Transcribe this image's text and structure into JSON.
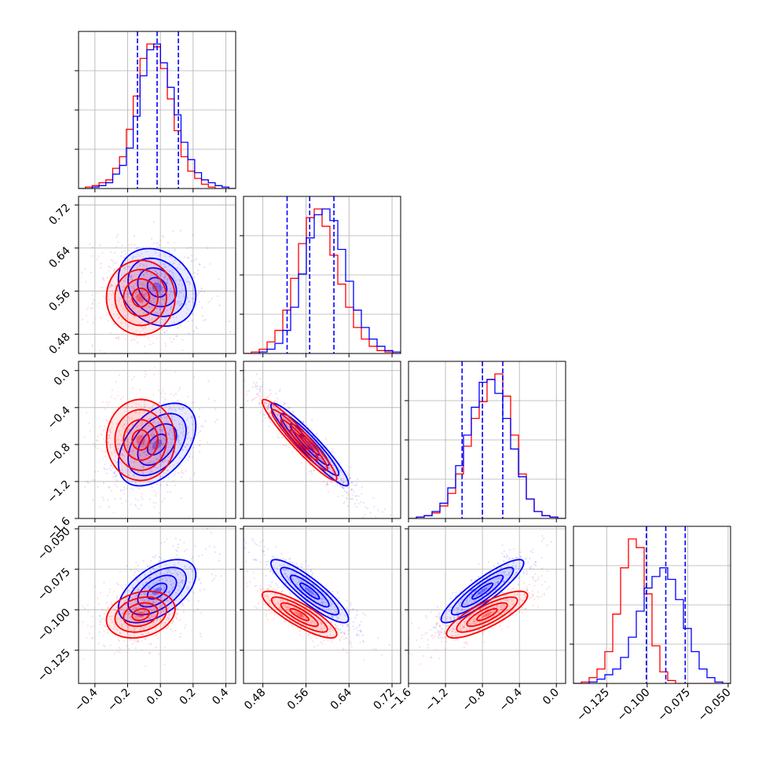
{
  "chart_data": {
    "type": "corner",
    "colors": {
      "red": "#ff0000",
      "blue": "#0000ff"
    },
    "params": [
      {
        "lim": [
          -0.5,
          0.46
        ],
        "ticks": [
          "−0.4",
          "−0.2",
          "0.0",
          "0.2",
          "0.4"
        ],
        "tickvals": [
          -0.4,
          -0.2,
          0.0,
          0.2,
          0.4
        ]
      },
      {
        "lim": [
          0.444,
          0.736
        ],
        "ticks": [
          "0.48",
          "0.56",
          "0.64",
          "0.72"
        ],
        "tickvals": [
          0.48,
          0.56,
          0.64,
          0.72
        ]
      },
      {
        "lim": [
          -1.6,
          0.1
        ],
        "ticks": [
          "−1.6",
          "−1.2",
          "−0.8",
          "−0.4",
          "0.0"
        ],
        "tickvals": [
          -1.6,
          -1.2,
          -0.8,
          -0.4,
          0.0
        ]
      },
      {
        "lim": [
          -0.1455,
          -0.0485
        ],
        "ticks": [
          "−0.125",
          "−0.100",
          "−0.075",
          "−0.050"
        ],
        "tickvals": [
          -0.125,
          -0.1,
          -0.075,
          -0.05
        ]
      }
    ],
    "y_ticks": [
      null,
      {
        "ticks": [
          "0.48",
          "0.56",
          "0.64",
          "0.72"
        ],
        "tickvals": [
          0.48,
          0.56,
          0.64,
          0.72
        ]
      },
      {
        "ticks": [
          "−1.6",
          "−1.2",
          "−0.8",
          "−0.4",
          "0.0"
        ],
        "tickvals": [
          -1.6,
          -1.2,
          -0.8,
          -0.4,
          0.0
        ]
      },
      {
        "ticks": [
          "−0.125",
          "−0.100",
          "−0.075",
          "−0.050"
        ],
        "tickvals": [
          -0.125,
          -0.1,
          -0.075,
          -0.05
        ]
      }
    ],
    "quantiles_blue": [
      [
        -0.14,
        -0.02,
        0.11
      ],
      [
        0.525,
        0.567,
        0.612
      ],
      [
        -1.02,
        -0.8,
        -0.58
      ],
      [
        -0.1005,
        -0.0885,
        -0.0765
      ]
    ],
    "histograms": [
      {
        "bins": [
          -0.5,
          0.46
        ],
        "red": [
          0,
          1,
          2,
          4,
          6,
          14,
          22,
          41,
          64,
          90,
          100,
          98,
          83,
          62,
          40,
          22,
          12,
          7,
          3,
          1,
          0,
          0,
          0
        ],
        "blue": [
          0,
          0,
          1,
          2,
          4,
          10,
          16,
          28,
          50,
          78,
          96,
          100,
          87,
          70,
          51,
          32,
          20,
          11,
          6,
          4,
          2,
          1,
          0
        ]
      },
      {
        "bins": [
          0.444,
          0.736
        ],
        "red": [
          0,
          1,
          3,
          8,
          16,
          30,
          52,
          76,
          94,
          100,
          88,
          68,
          48,
          32,
          18,
          10,
          5,
          2,
          1,
          0
        ],
        "blue": [
          0,
          0,
          1,
          3,
          7,
          16,
          32,
          55,
          80,
          96,
          100,
          92,
          72,
          50,
          30,
          18,
          10,
          5,
          2,
          1
        ]
      },
      {
        "bins": [
          -1.6,
          0.1
        ],
        "red": [
          0,
          1,
          2,
          4,
          9,
          18,
          32,
          52,
          72,
          84,
          100,
          104,
          88,
          60,
          32,
          14,
          5,
          2,
          1,
          0
        ],
        "blue": [
          0,
          1,
          2,
          5,
          11,
          22,
          38,
          60,
          80,
          98,
          100,
          90,
          72,
          50,
          30,
          14,
          5,
          2,
          1,
          0
        ]
      },
      {
        "bins": [
          -0.1455,
          -0.0485
        ],
        "red": [
          0,
          1,
          4,
          10,
          22,
          48,
          80,
          100,
          94,
          62,
          26,
          8,
          2,
          0,
          0,
          0,
          0,
          0,
          0,
          0
        ],
        "blue": [
          0,
          0,
          1,
          3,
          6,
          10,
          18,
          32,
          50,
          66,
          74,
          80,
          72,
          58,
          38,
          22,
          10,
          4,
          1,
          0
        ]
      }
    ],
    "contours": [
      {
        "i": 1,
        "j": 0,
        "red": {
          "center": [
            -0.12,
            0.548
          ],
          "cov": [
            [
              0.011,
              0.0
            ],
            [
              0.0,
              0.0012
            ]
          ]
        },
        "blue": {
          "center": [
            -0.02,
            0.567
          ],
          "cov": [
            [
              0.014,
              -0.0009
            ],
            [
              -0.0009,
              0.0013
            ]
          ]
        }
      },
      {
        "i": 2,
        "j": 0,
        "red": {
          "center": [
            -0.12,
            -0.75
          ],
          "cov": [
            [
              0.011,
              0.0
            ],
            [
              0.0,
              0.048
            ]
          ]
        },
        "blue": {
          "center": [
            -0.02,
            -0.8
          ],
          "cov": [
            [
              0.014,
              0.012
            ],
            [
              0.012,
              0.05
            ]
          ]
        }
      },
      {
        "i": 2,
        "j": 1,
        "red": {
          "center": [
            0.548,
            -0.75
          ],
          "cov": [
            [
              0.0012,
              -0.0072
            ],
            [
              -0.0072,
              0.048
            ]
          ]
        },
        "blue": {
          "center": [
            0.567,
            -0.8
          ],
          "cov": [
            [
              0.0013,
              -0.0076
            ],
            [
              -0.0076,
              0.05
            ]
          ]
        }
      },
      {
        "i": 3,
        "j": 0,
        "red": {
          "center": [
            -0.12,
            -0.103
          ],
          "cov": [
            [
              0.011,
              0.00018
            ],
            [
              0.00018,
              5.2e-05
            ]
          ]
        },
        "blue": {
          "center": [
            -0.02,
            -0.0885
          ],
          "cov": [
            [
              0.014,
              0.00062
            ],
            [
              0.00062,
              9.5e-05
            ]
          ]
        }
      },
      {
        "i": 3,
        "j": 1,
        "red": {
          "center": [
            0.548,
            -0.103
          ],
          "cov": [
            [
              0.0012,
              -0.00021
            ],
            [
              -0.00021,
              5.2e-05
            ]
          ]
        },
        "blue": {
          "center": [
            0.567,
            -0.0885
          ],
          "cov": [
            [
              0.0013,
              -0.00031
            ],
            [
              -0.00031,
              9.5e-05
            ]
          ]
        }
      },
      {
        "i": 3,
        "j": 2,
        "red": {
          "center": [
            -0.75,
            -0.103
          ],
          "cov": [
            [
              0.048,
              0.00128
            ],
            [
              0.00128,
              5.2e-05
            ]
          ]
        },
        "blue": {
          "center": [
            -0.8,
            -0.0885
          ],
          "cov": [
            [
              0.05,
              0.00194
            ],
            [
              0.00194,
              9.5e-05
            ]
          ]
        }
      }
    ],
    "contour_levels_sigma": [
      0.5,
      1.0,
      1.5,
      2.0
    ],
    "grid": true
  }
}
